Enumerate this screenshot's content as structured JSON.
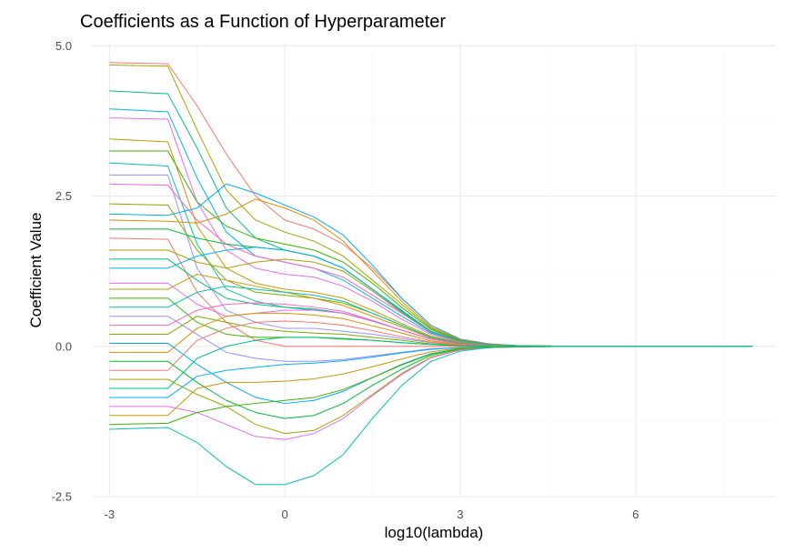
{
  "chart_data": {
    "type": "line",
    "title": "Coefficients as a Function of Hyperparameter",
    "xlabel": "log10(lambda)",
    "ylabel": "Coefficient Value",
    "xlim": [
      -3.3,
      8.4
    ],
    "ylim": [
      -2.5,
      5.05
    ],
    "x_ticks": [
      -3,
      0,
      3,
      6
    ],
    "x_tick_labels": [
      "-3",
      "0",
      "3",
      "6"
    ],
    "y_ticks": [
      -2.5,
      0.0,
      2.5,
      5.0
    ],
    "y_tick_labels": [
      "-2.5",
      "0.0",
      "2.5",
      "5.0"
    ],
    "grid": true,
    "legend": "none",
    "lambda_log10": [
      -3,
      -2,
      -1.5,
      -1,
      -0.5,
      0,
      0.5,
      1,
      1.5,
      2,
      2.5,
      3,
      3.5,
      4,
      5,
      6,
      7,
      8
    ],
    "series_colors": [
      "#F8766D",
      "#A3A500",
      "#00BF7D",
      "#00B0F6",
      "#E76BF3",
      "#CD9600",
      "#39B600",
      "#00C1AA",
      "#9590FF",
      "#FF62BC",
      "#7CAE00",
      "#00A9FF",
      "#D89000",
      "#00BA38"
    ],
    "series": [
      {
        "values": [
          4.72,
          4.7,
          4.0,
          3.2,
          2.5,
          2.1,
          1.95,
          1.7,
          1.3,
          0.8,
          0.35,
          0.12,
          0.04,
          0.01,
          0,
          0,
          0,
          0
        ]
      },
      {
        "values": [
          4.68,
          4.66,
          3.6,
          2.6,
          2.1,
          1.9,
          1.75,
          1.5,
          1.1,
          0.7,
          0.3,
          0.1,
          0.03,
          0.01,
          0,
          0,
          0,
          0
        ]
      },
      {
        "values": [
          4.25,
          4.2,
          3.3,
          2.3,
          1.8,
          1.6,
          1.5,
          1.3,
          0.95,
          0.6,
          0.25,
          0.09,
          0.03,
          0.01,
          0,
          0,
          0,
          0
        ]
      },
      {
        "values": [
          3.95,
          3.9,
          2.8,
          1.9,
          1.5,
          1.4,
          1.3,
          1.1,
          0.8,
          0.5,
          0.22,
          0.08,
          0.02,
          0.01,
          0,
          0,
          0,
          0
        ]
      },
      {
        "values": [
          3.8,
          3.78,
          2.4,
          1.6,
          1.3,
          1.2,
          1.15,
          1.0,
          0.75,
          0.45,
          0.2,
          0.07,
          0.02,
          0.01,
          0,
          0,
          0,
          0
        ]
      },
      {
        "values": [
          3.45,
          3.4,
          2.0,
          1.3,
          1.05,
          0.95,
          0.9,
          0.8,
          0.6,
          0.38,
          0.17,
          0.06,
          0.02,
          0.01,
          0,
          0,
          0,
          0
        ]
      },
      {
        "values": [
          3.25,
          3.25,
          2.4,
          2.0,
          1.8,
          1.7,
          1.6,
          1.4,
          1.05,
          0.65,
          0.28,
          0.1,
          0.03,
          0.01,
          0,
          0,
          0,
          0
        ]
      },
      {
        "values": [
          3.05,
          3.0,
          1.7,
          0.95,
          0.75,
          0.65,
          0.6,
          0.55,
          0.42,
          0.27,
          0.12,
          0.04,
          0.01,
          0.0,
          0,
          0,
          0,
          0
        ]
      },
      {
        "values": [
          2.85,
          2.85,
          1.3,
          0.6,
          0.4,
          0.3,
          0.3,
          0.25,
          0.2,
          0.13,
          0.06,
          0.02,
          0.01,
          0.0,
          0,
          0,
          0,
          0
        ]
      },
      {
        "values": [
          2.7,
          2.68,
          2.1,
          1.7,
          1.5,
          1.4,
          1.3,
          1.15,
          0.85,
          0.55,
          0.24,
          0.08,
          0.03,
          0.01,
          0,
          0,
          0,
          0
        ]
      },
      {
        "values": [
          2.37,
          2.35,
          1.6,
          1.1,
          0.9,
          0.85,
          0.8,
          0.72,
          0.55,
          0.35,
          0.15,
          0.05,
          0.02,
          0.01,
          0,
          0,
          0,
          0
        ]
      },
      {
        "values": [
          2.2,
          2.18,
          2.3,
          2.7,
          2.55,
          2.35,
          2.15,
          1.85,
          1.35,
          0.8,
          0.35,
          0.12,
          0.04,
          0.01,
          0,
          0,
          0,
          0
        ]
      },
      {
        "values": [
          2.1,
          2.08,
          2.05,
          2.2,
          2.45,
          2.3,
          2.1,
          1.75,
          1.25,
          0.75,
          0.32,
          0.11,
          0.04,
          0.01,
          0,
          0,
          0,
          0
        ]
      },
      {
        "values": [
          1.95,
          1.95,
          1.8,
          1.7,
          1.65,
          1.6,
          1.5,
          1.3,
          0.95,
          0.58,
          0.25,
          0.09,
          0.03,
          0.01,
          0,
          0,
          0,
          0
        ]
      },
      {
        "values": [
          1.8,
          1.78,
          0.9,
          0.4,
          0.1,
          0.0,
          0.0,
          0.0,
          0.0,
          0.0,
          0.0,
          0.0,
          0.0,
          0.0,
          0,
          0,
          0,
          0
        ]
      },
      {
        "values": [
          1.6,
          1.6,
          1.4,
          1.3,
          1.4,
          1.45,
          1.4,
          1.25,
          0.92,
          0.56,
          0.24,
          0.08,
          0.03,
          0.01,
          0,
          0,
          0,
          0
        ]
      },
      {
        "values": [
          1.45,
          1.45,
          1.1,
          0.8,
          0.7,
          0.65,
          0.62,
          0.55,
          0.42,
          0.27,
          0.12,
          0.04,
          0.01,
          0.0,
          0,
          0,
          0,
          0
        ]
      },
      {
        "values": [
          1.3,
          1.3,
          1.5,
          1.6,
          1.65,
          1.6,
          1.5,
          1.3,
          0.95,
          0.58,
          0.25,
          0.09,
          0.03,
          0.01,
          0,
          0,
          0,
          0
        ]
      },
      {
        "values": [
          1.05,
          1.05,
          0.7,
          0.5,
          0.55,
          0.6,
          0.6,
          0.55,
          0.42,
          0.27,
          0.12,
          0.04,
          0.01,
          0.0,
          0,
          0,
          0,
          0
        ]
      },
      {
        "values": [
          0.95,
          0.95,
          1.2,
          1.1,
          1.0,
          0.9,
          0.8,
          0.68,
          0.5,
          0.32,
          0.14,
          0.05,
          0.02,
          0.01,
          0,
          0,
          0,
          0
        ]
      },
      {
        "values": [
          0.8,
          0.8,
          0.4,
          0.2,
          0.15,
          0.15,
          0.15,
          0.12,
          0.1,
          0.06,
          0.03,
          0.01,
          0.0,
          0.0,
          0,
          0,
          0,
          0
        ]
      },
      {
        "values": [
          0.65,
          0.65,
          0.9,
          1.0,
          0.95,
          0.9,
          0.85,
          0.75,
          0.55,
          0.35,
          0.15,
          0.05,
          0.02,
          0.01,
          0,
          0,
          0,
          0
        ]
      },
      {
        "values": [
          0.5,
          0.5,
          0.2,
          -0.1,
          -0.2,
          -0.25,
          -0.25,
          -0.22,
          -0.16,
          -0.1,
          -0.04,
          -0.02,
          -0.01,
          0.0,
          0,
          0,
          0,
          0
        ]
      },
      {
        "values": [
          0.35,
          0.35,
          0.6,
          0.7,
          0.72,
          0.7,
          0.65,
          0.58,
          0.43,
          0.27,
          0.12,
          0.04,
          0.01,
          0.0,
          0,
          0,
          0,
          0
        ]
      },
      {
        "values": [
          0.2,
          0.2,
          0.5,
          0.4,
          0.3,
          0.25,
          0.22,
          0.2,
          0.15,
          0.1,
          0.04,
          0.02,
          0.01,
          0.0,
          0,
          0,
          0,
          0
        ]
      },
      {
        "values": [
          0.05,
          0.05,
          -0.3,
          -0.6,
          -0.85,
          -0.95,
          -0.9,
          -0.75,
          -0.52,
          -0.3,
          -0.12,
          -0.04,
          -0.01,
          0.0,
          0,
          0,
          0,
          0
        ]
      },
      {
        "values": [
          -0.1,
          -0.1,
          0.3,
          0.5,
          0.55,
          0.55,
          0.52,
          0.46,
          0.34,
          0.22,
          0.09,
          0.03,
          0.01,
          0.0,
          0,
          0,
          0,
          0
        ]
      },
      {
        "values": [
          -0.25,
          -0.25,
          -0.6,
          -0.9,
          -1.1,
          -1.2,
          -1.15,
          -0.95,
          -0.65,
          -0.38,
          -0.15,
          -0.05,
          -0.02,
          -0.01,
          0,
          0,
          0,
          0
        ]
      },
      {
        "values": [
          -0.4,
          -0.4,
          0.1,
          0.3,
          0.4,
          0.42,
          0.4,
          0.35,
          0.26,
          0.16,
          0.07,
          0.02,
          0.01,
          0.0,
          0,
          0,
          0,
          0
        ]
      },
      {
        "values": [
          -0.55,
          -0.55,
          -0.8,
          -1.0,
          -1.3,
          -1.45,
          -1.4,
          -1.15,
          -0.8,
          -0.45,
          -0.18,
          -0.06,
          -0.02,
          -0.01,
          0,
          0,
          0,
          0
        ]
      },
      {
        "values": [
          -0.7,
          -0.7,
          -0.2,
          0.0,
          0.1,
          0.15,
          0.15,
          0.13,
          0.1,
          0.06,
          0.03,
          0.01,
          0.0,
          0.0,
          0,
          0,
          0,
          0
        ]
      },
      {
        "values": [
          -0.85,
          -0.85,
          -0.5,
          -0.4,
          -0.35,
          -0.3,
          -0.28,
          -0.24,
          -0.18,
          -0.11,
          -0.05,
          -0.02,
          -0.01,
          0.0,
          0,
          0,
          0,
          0
        ]
      },
      {
        "values": [
          -1.0,
          -1.0,
          -1.1,
          -1.3,
          -1.5,
          -1.55,
          -1.45,
          -1.2,
          -0.82,
          -0.47,
          -0.19,
          -0.06,
          -0.02,
          -0.01,
          0,
          0,
          0,
          0
        ]
      },
      {
        "values": [
          -1.15,
          -1.15,
          -0.7,
          -0.6,
          -0.6,
          -0.58,
          -0.54,
          -0.46,
          -0.34,
          -0.21,
          -0.09,
          -0.03,
          -0.01,
          0.0,
          0,
          0,
          0,
          0
        ]
      },
      {
        "values": [
          -1.3,
          -1.28,
          -1.1,
          -1.0,
          -0.95,
          -0.9,
          -0.85,
          -0.72,
          -0.52,
          -0.31,
          -0.13,
          -0.04,
          -0.01,
          0.0,
          0,
          0,
          0,
          0
        ]
      },
      {
        "values": [
          -1.38,
          -1.35,
          -1.6,
          -2.0,
          -2.3,
          -2.3,
          -2.15,
          -1.8,
          -1.2,
          -0.65,
          -0.25,
          -0.08,
          -0.02,
          -0.01,
          0,
          0,
          0,
          0
        ]
      }
    ]
  }
}
